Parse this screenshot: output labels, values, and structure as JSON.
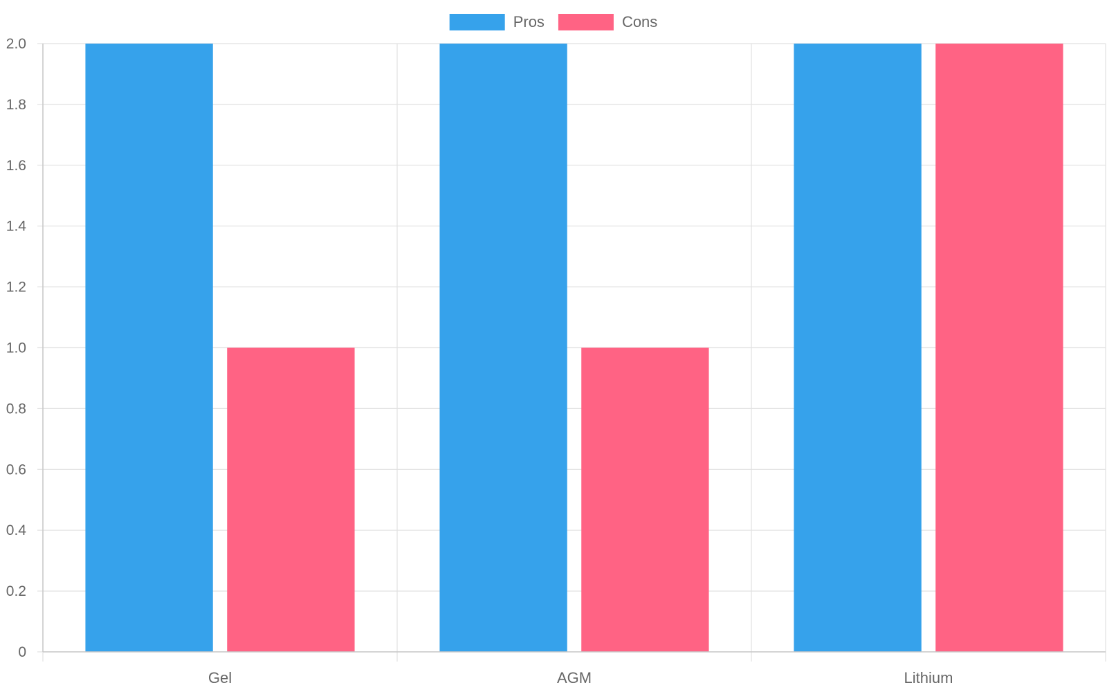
{
  "chart_data": {
    "type": "bar",
    "categories": [
      "Gel",
      "AGM",
      "Lithium"
    ],
    "series": [
      {
        "name": "Pros",
        "values": [
          2,
          2,
          2
        ],
        "color": "#36A2EB"
      },
      {
        "name": "Cons",
        "values": [
          1,
          1,
          2
        ],
        "color": "#FF6384"
      }
    ],
    "ylim": [
      0,
      2
    ],
    "y_ticks": [
      "0",
      "0.2",
      "0.4",
      "0.6",
      "0.8",
      "1.0",
      "1.2",
      "1.4",
      "1.6",
      "1.8",
      "2.0"
    ],
    "grid": true,
    "legend_position": "top-center",
    "title": "",
    "xlabel": "",
    "ylabel": ""
  },
  "colors": {
    "grid": "#e1e1e1",
    "axis": "#c8c8c8",
    "text": "#666666"
  }
}
